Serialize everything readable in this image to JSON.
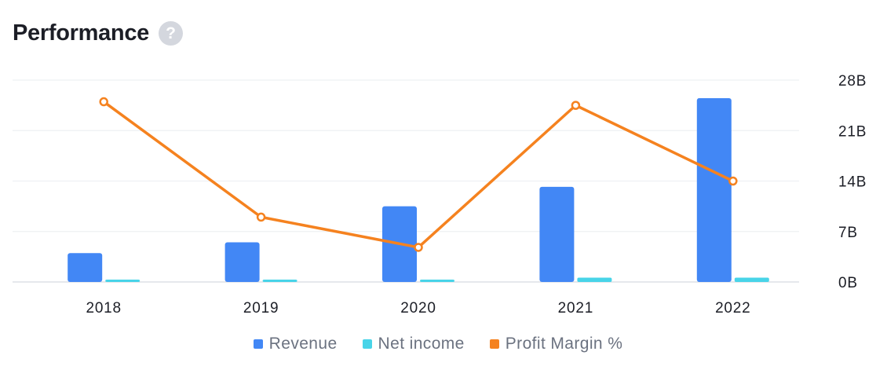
{
  "header": {
    "title": "Performance",
    "help_icon": "question-mark-icon",
    "help_glyph": "?"
  },
  "colors": {
    "revenue": "#4287f5",
    "net_income": "#48d4e8",
    "profit_margin": "#f5821f",
    "grid": "#eef0f3",
    "axis": "#d8dbe0"
  },
  "chart_data": {
    "type": "bar",
    "categories": [
      "2018",
      "2019",
      "2020",
      "2021",
      "2022"
    ],
    "series": [
      {
        "name": "Revenue",
        "type": "bar",
        "axis": "right",
        "values": [
          4.0,
          5.5,
          10.5,
          13.2,
          25.5
        ]
      },
      {
        "name": "Net income",
        "type": "bar",
        "axis": "right",
        "values": [
          0.3,
          0.3,
          0.3,
          0.6,
          0.6
        ]
      },
      {
        "name": "Profit Margin %",
        "type": "line",
        "axis": "hidden",
        "values": [
          25.0,
          9.0,
          4.8,
          24.5,
          14.0
        ]
      }
    ],
    "yticks": [
      "0B",
      "7B",
      "14B",
      "21B",
      "28B"
    ],
    "ytick_values": [
      0,
      7,
      14,
      21,
      28
    ],
    "ylim": [
      0,
      28
    ],
    "y_axis_side": "right",
    "grid": true,
    "legend_position": "bottom"
  }
}
